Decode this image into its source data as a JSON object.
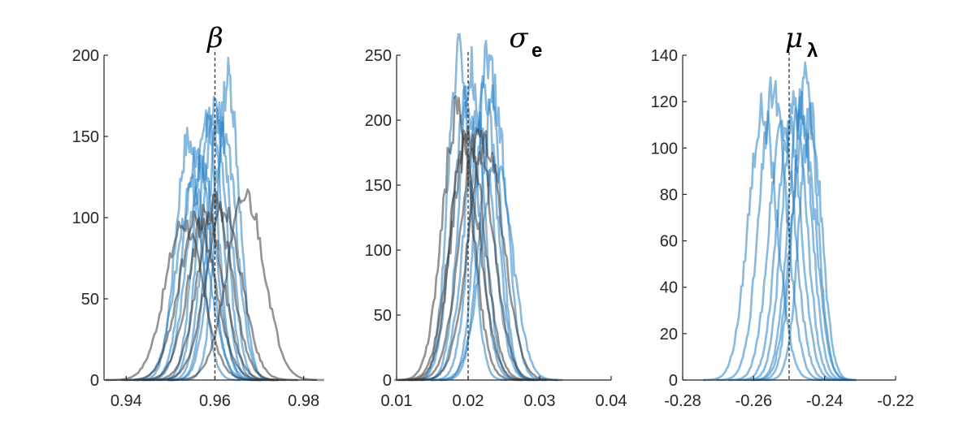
{
  "colors": {
    "blue": "#2680c4",
    "gray": "#3a3a3a"
  },
  "chart_data": [
    {
      "type": "line",
      "title": {
        "symbol": "β",
        "subscript": ""
      },
      "xlim": [
        0.935,
        0.983
      ],
      "ylim": [
        0,
        200
      ],
      "xticks": [
        0.94,
        0.96,
        0.98
      ],
      "xtick_labels": [
        "0.94",
        "0.96",
        "0.98"
      ],
      "yticks": [
        0,
        50,
        100,
        150,
        200
      ],
      "ytick_labels": [
        "0",
        "50",
        "100",
        "150",
        "200"
      ],
      "reference_x": 0.96,
      "series": [
        {
          "color": "blue",
          "center": 0.954,
          "sd": 0.0028,
          "peak": 147
        },
        {
          "color": "blue",
          "center": 0.956,
          "sd": 0.003,
          "peak": 140
        },
        {
          "color": "blue",
          "center": 0.958,
          "sd": 0.0026,
          "peak": 163
        },
        {
          "color": "blue",
          "center": 0.959,
          "sd": 0.0027,
          "peak": 158
        },
        {
          "color": "blue",
          "center": 0.96,
          "sd": 0.0026,
          "peak": 165
        },
        {
          "color": "blue",
          "center": 0.961,
          "sd": 0.0026,
          "peak": 162
        },
        {
          "color": "blue",
          "center": 0.963,
          "sd": 0.0025,
          "peak": 186
        },
        {
          "color": "blue",
          "center": 0.955,
          "sd": 0.0036,
          "peak": 117
        },
        {
          "color": "blue",
          "center": 0.962,
          "sd": 0.0029,
          "peak": 150
        },
        {
          "color": "blue",
          "center": 0.957,
          "sd": 0.0032,
          "peak": 132
        },
        {
          "color": "gray",
          "center": 0.953,
          "sd": 0.0042,
          "peak": 97
        },
        {
          "color": "gray",
          "center": 0.956,
          "sd": 0.0041,
          "peak": 99
        },
        {
          "color": "gray",
          "center": 0.96,
          "sd": 0.0038,
          "peak": 108
        },
        {
          "color": "gray",
          "center": 0.962,
          "sd": 0.004,
          "peak": 104
        },
        {
          "color": "gray",
          "center": 0.967,
          "sd": 0.0042,
          "peak": 113
        },
        {
          "color": "gray",
          "center": 0.958,
          "sd": 0.0039,
          "peak": 102
        }
      ]
    },
    {
      "type": "line",
      "title": {
        "symbol": "σ",
        "subscript": "e"
      },
      "xlim": [
        0.01,
        0.04
      ],
      "ylim": [
        0,
        250
      ],
      "xticks": [
        0.01,
        0.02,
        0.03,
        0.04
      ],
      "xtick_labels": [
        "0.01",
        "0.02",
        "0.03",
        "0.04"
      ],
      "yticks": [
        0,
        50,
        100,
        150,
        200,
        250
      ],
      "ytick_labels": [
        "0",
        "50",
        "100",
        "150",
        "200",
        "250"
      ],
      "reference_x": 0.02,
      "series": [
        {
          "color": "blue",
          "center": 0.0188,
          "sd": 0.0016,
          "peak": 250
        },
        {
          "color": "blue",
          "center": 0.0205,
          "sd": 0.0017,
          "peak": 238
        },
        {
          "color": "blue",
          "center": 0.0228,
          "sd": 0.0016,
          "peak": 250
        },
        {
          "color": "blue",
          "center": 0.0236,
          "sd": 0.0018,
          "peak": 221
        },
        {
          "color": "blue",
          "center": 0.0197,
          "sd": 0.0019,
          "peak": 212
        },
        {
          "color": "blue",
          "center": 0.0215,
          "sd": 0.002,
          "peak": 200
        },
        {
          "color": "blue",
          "center": 0.024,
          "sd": 0.0022,
          "peak": 163
        },
        {
          "color": "blue",
          "center": 0.0222,
          "sd": 0.0018,
          "peak": 228
        },
        {
          "color": "gray",
          "center": 0.0185,
          "sd": 0.0021,
          "peak": 205
        },
        {
          "color": "gray",
          "center": 0.02,
          "sd": 0.0022,
          "peak": 193
        },
        {
          "color": "gray",
          "center": 0.0212,
          "sd": 0.0023,
          "peak": 188
        },
        {
          "color": "gray",
          "center": 0.0225,
          "sd": 0.0024,
          "peak": 185
        },
        {
          "color": "gray",
          "center": 0.0195,
          "sd": 0.0022,
          "peak": 175
        }
      ]
    },
    {
      "type": "line",
      "title": {
        "symbol": "μ",
        "subscript": "λ"
      },
      "xlim": [
        -0.28,
        -0.22
      ],
      "ylim": [
        0,
        140
      ],
      "xticks": [
        -0.28,
        -0.26,
        -0.24,
        -0.22
      ],
      "xtick_labels": [
        "-0.28",
        "-0.26",
        "-0.24",
        "-0.22"
      ],
      "yticks": [
        0,
        20,
        40,
        60,
        80,
        100,
        120,
        140
      ],
      "ytick_labels": [
        "0",
        "20",
        "40",
        "60",
        "80",
        "100",
        "120",
        "140"
      ],
      "reference_x": -0.25,
      "series": [
        {
          "color": "blue",
          "center": -0.2575,
          "sd": 0.004,
          "peak": 115
        },
        {
          "color": "blue",
          "center": -0.2545,
          "sd": 0.0038,
          "peak": 123
        },
        {
          "color": "blue",
          "center": -0.252,
          "sd": 0.0036,
          "peak": 112
        },
        {
          "color": "blue",
          "center": -0.25,
          "sd": 0.0035,
          "peak": 108
        },
        {
          "color": "blue",
          "center": -0.2485,
          "sd": 0.0034,
          "peak": 116
        },
        {
          "color": "blue",
          "center": -0.247,
          "sd": 0.0033,
          "peak": 118
        },
        {
          "color": "blue",
          "center": -0.2455,
          "sd": 0.0032,
          "peak": 131
        },
        {
          "color": "blue",
          "center": -0.244,
          "sd": 0.0031,
          "peak": 113
        },
        {
          "color": "blue",
          "center": -0.246,
          "sd": 0.0035,
          "peak": 106
        }
      ]
    }
  ]
}
